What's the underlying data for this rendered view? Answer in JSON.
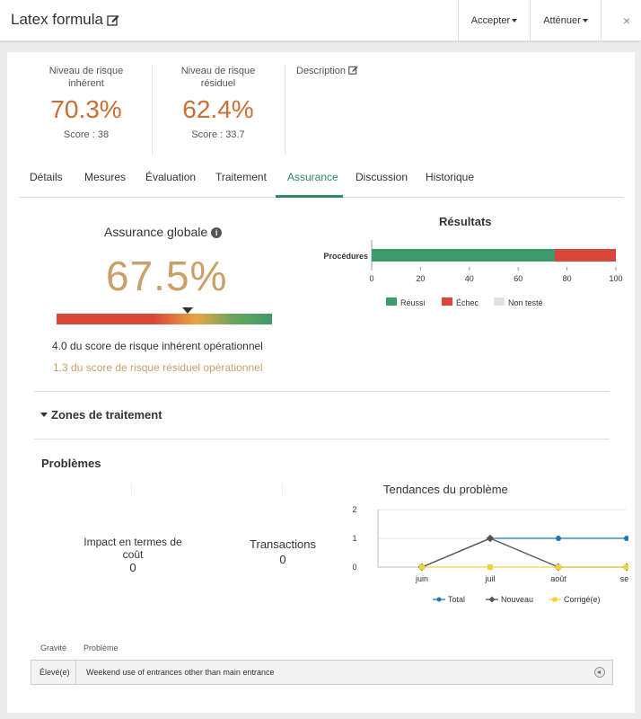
{
  "header": {
    "title": "Latex formula",
    "accept_label": "Accepter",
    "mitigate_label": "Atténuer",
    "close_glyph": "×"
  },
  "risk": {
    "inherent": {
      "label_line1": "Niveau de risque",
      "label_line2": "inhérent",
      "value": "70.3%",
      "score": "Score : 38"
    },
    "residual": {
      "label_line1": "Niveau de risque",
      "label_line2": "résiduel",
      "value": "62.4%",
      "score": "Score : 33.7"
    },
    "description_label": "Description"
  },
  "tabs": [
    "Détails",
    "Mesures",
    "Évaluation",
    "Traitement",
    "Assurance",
    "Discussion",
    "Historique"
  ],
  "active_tab": "Assurance",
  "assurance": {
    "title": "Assurance globale",
    "value": "67.5%",
    "gauge_level": 0.61,
    "line1": "4.0 du score de risque inhérent opérationnel",
    "line2": "1.3 du score de risque résiduel opérationnel"
  },
  "zones_title": "Zones de traitement",
  "problems": {
    "title": "Problèmes",
    "impact_label_line1": "Impact en termes de",
    "impact_label_line2": "coût",
    "impact_value": "0",
    "transactions_label": "Transactions",
    "transactions_value": "0"
  },
  "table": {
    "col_severity": "Gravité",
    "col_problem": "Problème",
    "rows": [
      {
        "severity": "Élevé(e)",
        "problem": "Weekend use of entrances other than main entrance"
      }
    ]
  },
  "colors": {
    "accent": "#2c8a5c",
    "risk_value": "#c96f33",
    "assurance_value": "#c9a068",
    "success": "#3e9a6d",
    "failure": "#d9463a",
    "untested": "#e3e3dc",
    "total": "#1f77b4",
    "nouveau": "#555555",
    "corrige": "#f0d23a"
  },
  "chart_data": [
    {
      "type": "bar",
      "title": "Résultats",
      "orientation": "horizontal",
      "stacked": true,
      "categories": [
        "Procédures"
      ],
      "series": [
        {
          "name": "Réussi",
          "values": [
            75
          ]
        },
        {
          "name": "Échec",
          "values": [
            25
          ]
        },
        {
          "name": "Non testé",
          "values": [
            0
          ]
        }
      ],
      "xlim": [
        0,
        100
      ],
      "xticks": [
        0,
        20,
        40,
        60,
        80,
        100
      ],
      "legend": "bottom"
    },
    {
      "type": "line",
      "title": "Tendances du problème",
      "x": [
        "juin",
        "juil",
        "août",
        "sep"
      ],
      "series": [
        {
          "name": "Total",
          "values": [
            0,
            1,
            1,
            1
          ]
        },
        {
          "name": "Nouveau",
          "values": [
            0,
            1,
            0,
            0
          ]
        },
        {
          "name": "Corrigé(e)",
          "values": [
            0,
            0,
            0,
            0
          ]
        }
      ],
      "ylim": [
        0,
        2
      ],
      "yticks": [
        0,
        1,
        2
      ],
      "grid": true,
      "legend": "bottom"
    }
  ]
}
